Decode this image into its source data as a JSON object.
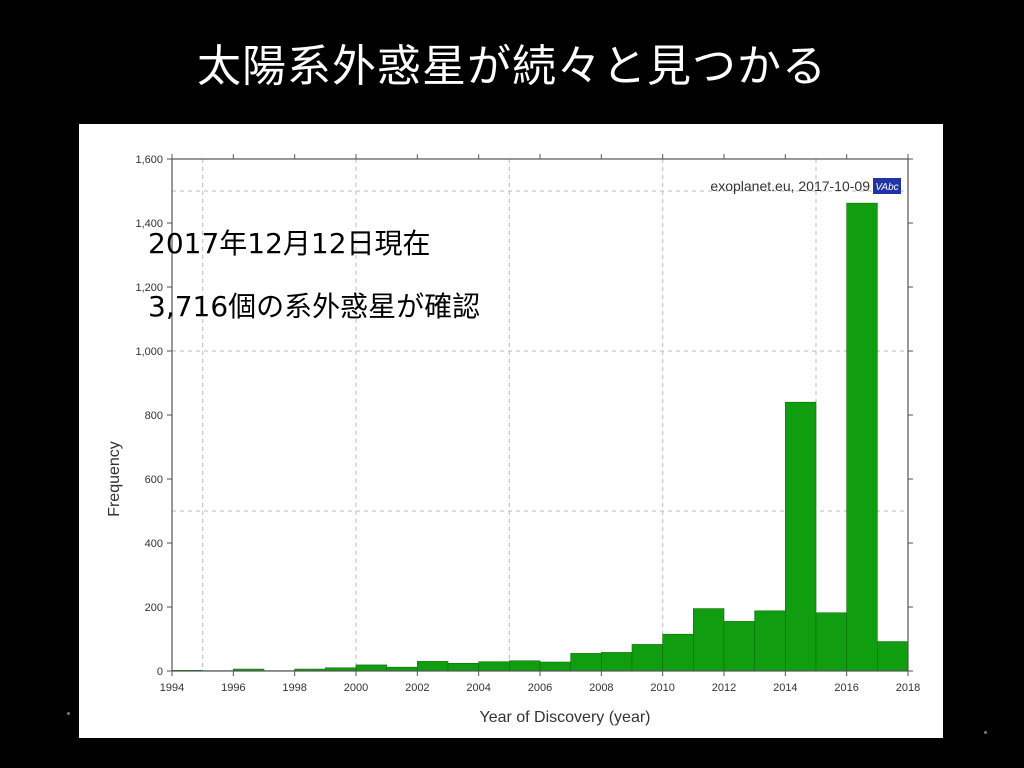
{
  "slide": {
    "title": "太陽系外惑星が続々と見つかる",
    "note_line1": "2017年12月12日現在",
    "note_line2": "3,716個の系外惑星が確認"
  },
  "source": {
    "label": "exoplanet.eu, 2017-10-09",
    "logo_text": "VAbc",
    "logo_color": "#2233aa"
  },
  "colors": {
    "bar": "#109e10",
    "bar_edge": "#0a6e0a",
    "grid": "#bbbbbb",
    "axis": "#555555"
  },
  "chart_data": {
    "type": "bar",
    "title": "",
    "xlabel": "Year of Discovery (year)",
    "ylabel": "Frequency",
    "xlim": [
      1994,
      2018
    ],
    "ylim": [
      0,
      1600
    ],
    "grid": true,
    "xticks": [
      "1994",
      "1996",
      "1998",
      "2000",
      "2002",
      "2004",
      "2006",
      "2008",
      "2010",
      "2012",
      "2014",
      "2016",
      "2018"
    ],
    "yticks": [
      "0",
      "200",
      "400",
      "600",
      "800",
      "1,000",
      "1,200",
      "1,400",
      "1,600"
    ],
    "bins": [
      {
        "x0": 1994.0,
        "x1": 1995.0,
        "value": 2
      },
      {
        "x0": 1995.0,
        "x1": 1996.0,
        "value": 1
      },
      {
        "x0": 1996.0,
        "x1": 1997.0,
        "value": 6
      },
      {
        "x0": 1997.0,
        "x1": 1998.0,
        "value": 1
      },
      {
        "x0": 1998.0,
        "x1": 1999.0,
        "value": 6
      },
      {
        "x0": 1999.0,
        "x1": 2000.0,
        "value": 10
      },
      {
        "x0": 2000.0,
        "x1": 2001.0,
        "value": 19
      },
      {
        "x0": 2001.0,
        "x1": 2002.0,
        "value": 12
      },
      {
        "x0": 2002.0,
        "x1": 2003.0,
        "value": 30
      },
      {
        "x0": 2003.0,
        "x1": 2004.0,
        "value": 24
      },
      {
        "x0": 2004.0,
        "x1": 2005.0,
        "value": 29
      },
      {
        "x0": 2005.0,
        "x1": 2006.0,
        "value": 32
      },
      {
        "x0": 2006.0,
        "x1": 2007.0,
        "value": 28
      },
      {
        "x0": 2007.0,
        "x1": 2008.0,
        "value": 55
      },
      {
        "x0": 2008.0,
        "x1": 2009.0,
        "value": 58
      },
      {
        "x0": 2009.0,
        "x1": 2010.0,
        "value": 83
      },
      {
        "x0": 2010.0,
        "x1": 2011.0,
        "value": 115
      },
      {
        "x0": 2011.0,
        "x1": 2012.0,
        "value": 195
      },
      {
        "x0": 2012.0,
        "x1": 2013.0,
        "value": 155
      },
      {
        "x0": 2013.0,
        "x1": 2014.0,
        "value": 188
      },
      {
        "x0": 2014.0,
        "x1": 2015.0,
        "value": 840
      },
      {
        "x0": 2015.0,
        "x1": 2016.0,
        "value": 182
      },
      {
        "x0": 2016.0,
        "x1": 2017.0,
        "value": 1462
      },
      {
        "x0": 2017.0,
        "x1": 2018.0,
        "value": 92
      }
    ]
  }
}
